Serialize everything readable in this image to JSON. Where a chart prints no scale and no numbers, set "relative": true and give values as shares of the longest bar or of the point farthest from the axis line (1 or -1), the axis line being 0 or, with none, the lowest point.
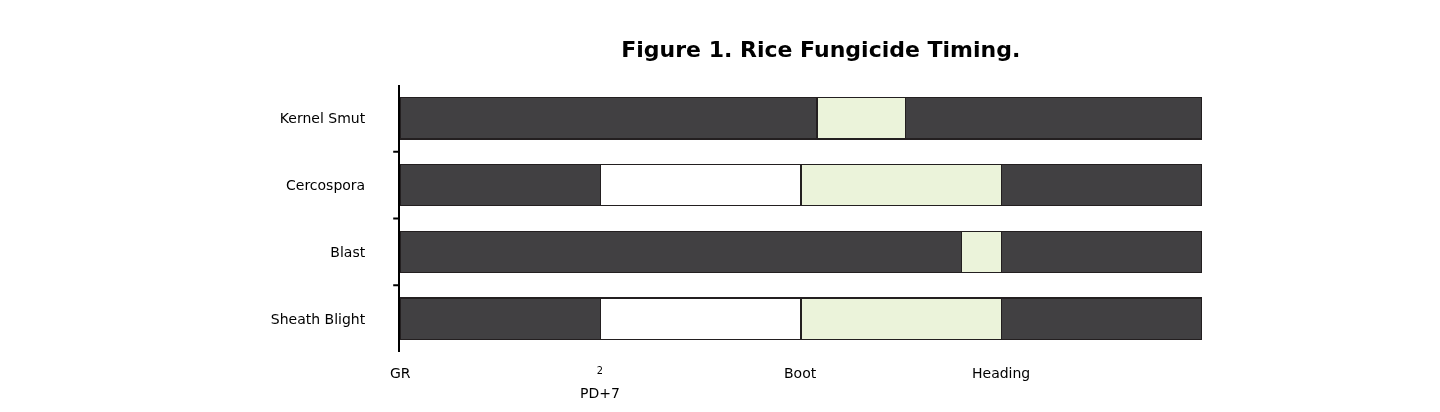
{
  "chart_data": {
    "type": "bar",
    "orientation": "horizontal",
    "stacked": true,
    "relative": true,
    "title": "Figure 1. Rice Fungicide Timing.",
    "categories": [
      "Kernel Smut",
      "Cercospora",
      "Blast",
      "Sheath Blight"
    ],
    "series": [
      {
        "values": [
          0.52,
          0.25,
          0.7,
          0.25
        ],
        "colors": [
          "#414042",
          "#414042",
          "#414042",
          "#414042"
        ]
      },
      {
        "values": [
          0.11,
          0.25,
          0.05,
          0.25
        ],
        "colors": [
          "#ebf3da",
          "#ffffff",
          "#ebf3da",
          "#ffffff"
        ]
      },
      {
        "values": [
          0.37,
          0.25,
          0.25,
          0.25
        ],
        "colors": [
          "#414042",
          "#ebf3da",
          "#414042",
          "#ebf3da"
        ]
      },
      {
        "values": [
          null,
          0.25,
          null,
          0.25
        ],
        "colors": [
          null,
          "#414042",
          null,
          "#414042"
        ]
      }
    ],
    "annotations": [
      "GR",
      "$^{2}$\nPD+7",
      "Boot",
      "Heading"
    ]
  }
}
